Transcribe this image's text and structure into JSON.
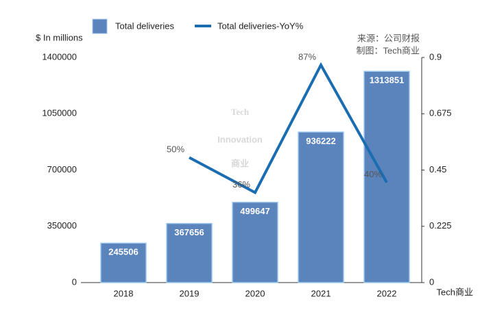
{
  "chart_data": {
    "type": "bar",
    "y_label": "$ In millions",
    "annotations": [
      "来源：公司财报",
      "制图：Tech商业"
    ],
    "watermark": [
      "Tech",
      "Innovation",
      "商业"
    ],
    "badge": "Tech商业",
    "categories": [
      "2018",
      "2019",
      "2020",
      "2021",
      "2022"
    ],
    "series": [
      {
        "name": "Total deliveries",
        "color": "#5b84bd",
        "values": [
          245506,
          367656,
          499647,
          936222,
          1313851
        ]
      },
      {
        "name": "Total deliveries-YoY%",
        "type": "line",
        "axis": "y2",
        "color": "#1a6db0",
        "values": [
          null,
          0.5,
          0.36,
          0.87,
          0.4
        ],
        "value_labels": [
          null,
          "50%",
          "36%",
          "87%",
          "40%"
        ]
      }
    ],
    "ylim": [
      0,
      1400000
    ],
    "yticks": [
      0,
      350000,
      700000,
      1050000,
      1400000
    ],
    "y2lim": [
      0,
      0.9
    ],
    "y2ticks": [
      0,
      0.225,
      0.45,
      0.675,
      0.9
    ],
    "grid": false
  }
}
